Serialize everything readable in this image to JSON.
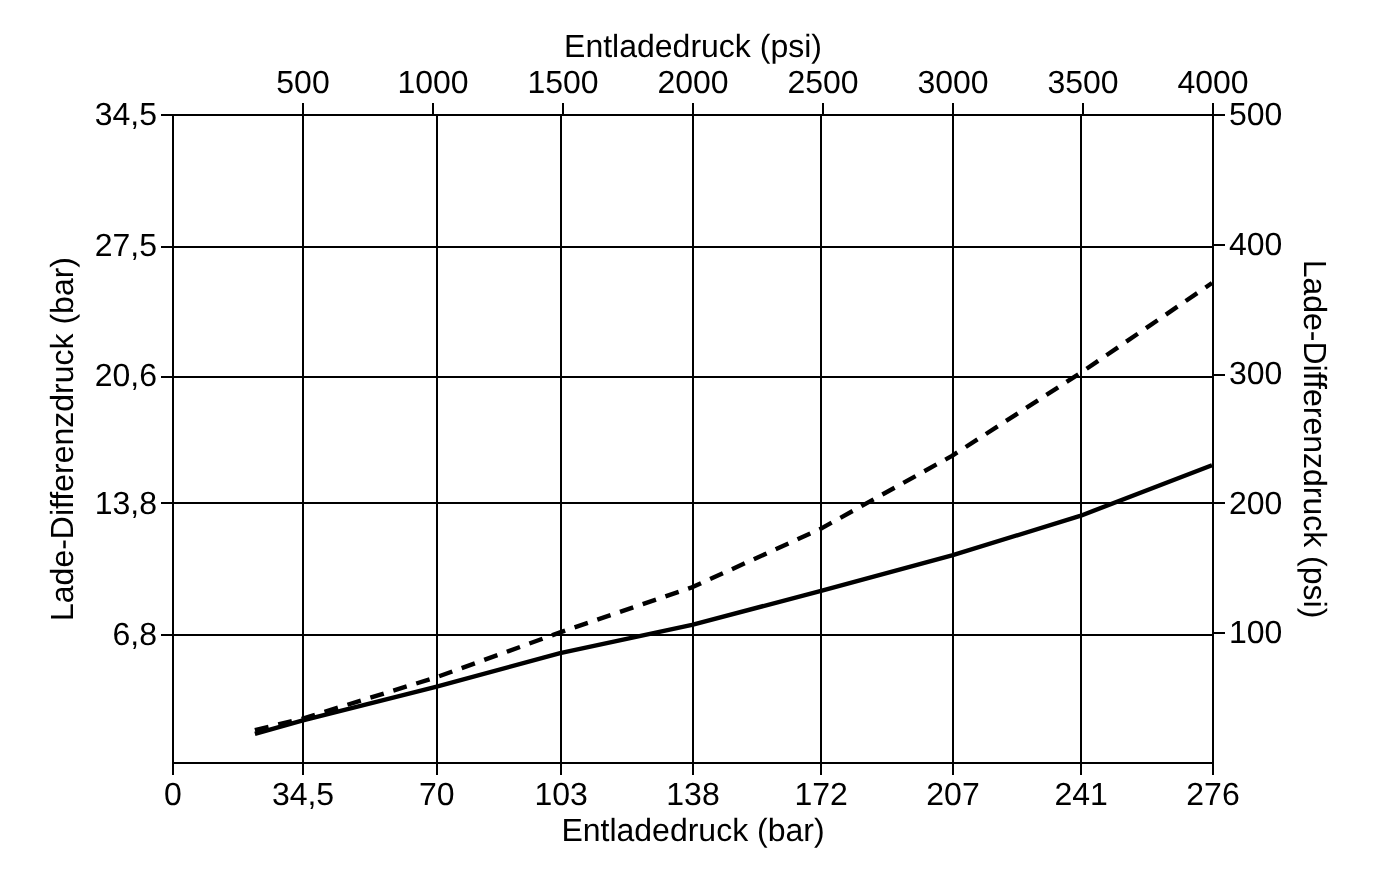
{
  "chart_data": {
    "type": "line",
    "xlabel": "Entladedruck (bar)",
    "x2label": "Entladedruck (psi)",
    "ylabel": "Lade-Differenzdruck (bar)",
    "y2label": "Lade-Differenzdruck (psi)",
    "xlim": [
      0,
      276
    ],
    "xticks": [
      0,
      {
        "value": 34.5,
        "label": "34,5"
      },
      70,
      103,
      138,
      172,
      207,
      241,
      276
    ],
    "x2lim": [
      0,
      4000
    ],
    "x2ticks": [
      500,
      1000,
      1500,
      2000,
      2500,
      3000,
      3500,
      4000
    ],
    "ylim": [
      0,
      34.5
    ],
    "yticks": [
      {
        "value": 6.8,
        "label": "6,8"
      },
      {
        "value": 13.8,
        "label": "13,8"
      },
      {
        "value": 20.6,
        "label": "20,6"
      },
      {
        "value": 27.5,
        "label": "27,5"
      },
      {
        "value": 34.5,
        "label": "34,5"
      }
    ],
    "y2lim": [
      0,
      500
    ],
    "y2ticks": [
      100,
      200,
      300,
      400,
      500
    ],
    "grid": true,
    "x": [
      22,
      34.5,
      70,
      103,
      138,
      172,
      207,
      241,
      276
    ],
    "series": [
      {
        "color": "#000000",
        "line_style": "solid",
        "values": [
          1.5,
          2.2,
          4.0,
          5.8,
          7.3,
          9.1,
          11.0,
          13.1,
          15.8
        ]
      },
      {
        "color": "#000000",
        "line_style": "dashed",
        "values": [
          1.7,
          2.3,
          4.5,
          6.9,
          9.3,
          12.4,
          16.3,
          20.7,
          25.5
        ]
      }
    ]
  }
}
